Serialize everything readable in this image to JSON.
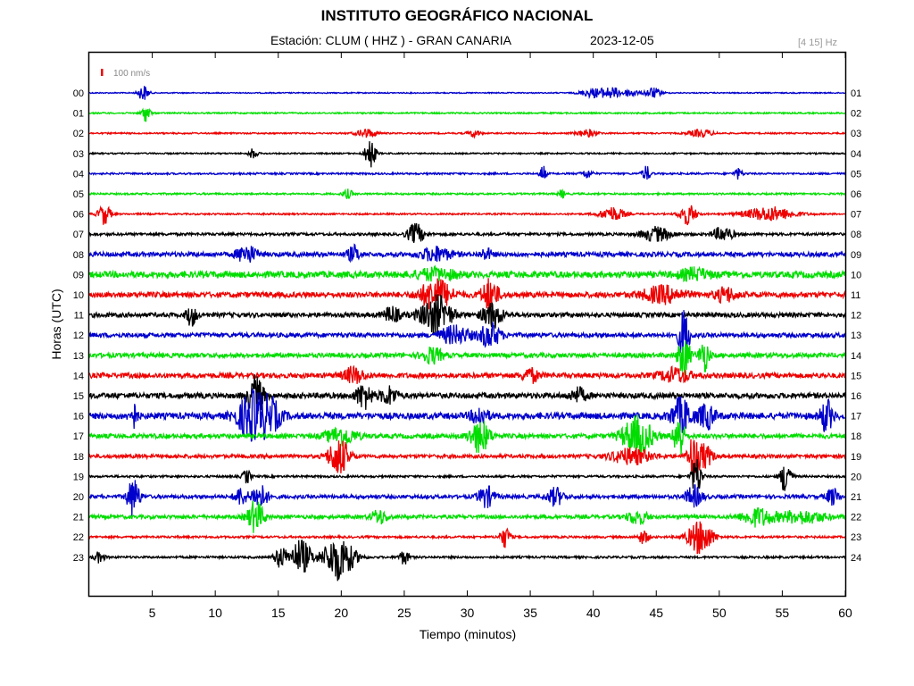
{
  "title": "INSTITUTO GEOGRÁFICO NACIONAL",
  "station_text": "Estación:  CLUM ( HHZ ) - GRAN CANARIA",
  "date": "2023-12-05",
  "filter_band": "[4 15] Hz",
  "chart_data": {
    "type": "line",
    "title": "INSTITUTO GEOGRÁFICO NACIONAL",
    "xlabel": "Tiempo (minutos)",
    "ylabel": "Horas (UTC)",
    "xlim": [
      0,
      60
    ],
    "x_ticks": [
      "5",
      "10",
      "15",
      "20",
      "25",
      "30",
      "35",
      "40",
      "45",
      "50",
      "55",
      "60"
    ],
    "left_hour_labels": [
      "00",
      "01",
      "02",
      "03",
      "04",
      "05",
      "06",
      "07",
      "08",
      "09",
      "10",
      "11",
      "12",
      "13",
      "14",
      "15",
      "16",
      "17",
      "18",
      "19",
      "20",
      "21",
      "22",
      "23"
    ],
    "right_hour_labels": [
      "01",
      "02",
      "03",
      "04",
      "05",
      "06",
      "07",
      "08",
      "09",
      "10",
      "11",
      "12",
      "13",
      "14",
      "15",
      "16",
      "17",
      "18",
      "19",
      "20",
      "21",
      "22",
      "23",
      "24"
    ],
    "scale_label": "100 nm/s",
    "trace_color_cycle": [
      "#0000cc",
      "#00dd00",
      "#ee0000",
      "#000000"
    ],
    "scale_color": "#ee0000",
    "grid": false,
    "series": [
      {
        "hour": "00",
        "color": "#0000cc",
        "noise": 0.6,
        "events": [
          [
            4.3,
            0.5,
            9
          ],
          [
            40.0,
            1.2,
            5
          ],
          [
            41.5,
            1.0,
            6
          ],
          [
            43.0,
            0.6,
            5
          ],
          [
            44.7,
            0.8,
            6
          ]
        ]
      },
      {
        "hour": "01",
        "color": "#00dd00",
        "noise": 0.8,
        "events": [
          [
            4.5,
            0.4,
            10
          ]
        ]
      },
      {
        "hour": "02",
        "color": "#ee0000",
        "noise": 0.8,
        "events": [
          [
            22.0,
            1.0,
            5
          ],
          [
            30.5,
            0.6,
            4
          ],
          [
            39.5,
            1.0,
            4
          ],
          [
            48.5,
            1.2,
            4
          ]
        ]
      },
      {
        "hour": "03",
        "color": "#000000",
        "noise": 0.8,
        "events": [
          [
            13.0,
            0.4,
            6
          ],
          [
            22.3,
            0.5,
            18
          ]
        ]
      },
      {
        "hour": "04",
        "color": "#0000cc",
        "noise": 1.0,
        "events": [
          [
            36.0,
            0.3,
            10
          ],
          [
            39.5,
            0.5,
            5
          ],
          [
            44.2,
            0.4,
            9
          ],
          [
            51.5,
            0.4,
            6
          ]
        ]
      },
      {
        "hour": "05",
        "color": "#00dd00",
        "noise": 1.0,
        "events": [
          [
            20.5,
            0.5,
            5
          ],
          [
            37.5,
            0.3,
            5
          ]
        ]
      },
      {
        "hour": "06",
        "color": "#ee0000",
        "noise": 0.9,
        "events": [
          [
            1.2,
            0.6,
            12
          ],
          [
            41.5,
            1.2,
            8
          ],
          [
            47.5,
            0.8,
            12
          ],
          [
            54.0,
            2.5,
            8
          ]
        ]
      },
      {
        "hour": "07",
        "color": "#000000",
        "noise": 1.5,
        "events": [
          [
            25.9,
            0.8,
            12
          ],
          [
            45.0,
            1.5,
            8
          ],
          [
            50.3,
            1.0,
            8
          ]
        ]
      },
      {
        "hour": "08",
        "color": "#0000cc",
        "noise": 2.5,
        "events": [
          [
            12.5,
            1.0,
            10
          ],
          [
            21.0,
            0.6,
            9
          ],
          [
            27.5,
            1.5,
            8
          ],
          [
            31.5,
            0.6,
            6
          ]
        ]
      },
      {
        "hour": "09",
        "color": "#00dd00",
        "noise": 3.5,
        "events": [
          [
            27.5,
            2.0,
            6
          ],
          [
            48.0,
            1.5,
            6
          ]
        ]
      },
      {
        "hour": "10",
        "color": "#ee0000",
        "noise": 3.0,
        "events": [
          [
            27.5,
            1.5,
            18
          ],
          [
            31.8,
            0.8,
            18
          ],
          [
            45.5,
            2.0,
            9
          ],
          [
            50.5,
            1.0,
            8
          ]
        ]
      },
      {
        "hour": "11",
        "color": "#000000",
        "noise": 2.5,
        "events": [
          [
            8.1,
            0.5,
            12
          ],
          [
            24.0,
            0.8,
            9
          ],
          [
            27.5,
            1.5,
            22
          ],
          [
            32.0,
            1.0,
            14
          ]
        ]
      },
      {
        "hour": "12",
        "color": "#0000cc",
        "noise": 2.5,
        "events": [
          [
            29.0,
            1.5,
            10
          ],
          [
            31.8,
            1.0,
            14
          ],
          [
            47.2,
            0.5,
            30
          ]
        ]
      },
      {
        "hour": "13",
        "color": "#00dd00",
        "noise": 2.5,
        "events": [
          [
            27.2,
            1.0,
            9
          ],
          [
            47.2,
            0.6,
            22
          ],
          [
            48.8,
            0.5,
            18
          ]
        ]
      },
      {
        "hour": "14",
        "color": "#ee0000",
        "noise": 2.8,
        "events": [
          [
            21.0,
            1.0,
            9
          ],
          [
            35.0,
            0.8,
            8
          ],
          [
            46.5,
            1.5,
            8
          ]
        ]
      },
      {
        "hour": "15",
        "color": "#000000",
        "noise": 3.0,
        "events": [
          [
            13.2,
            0.8,
            22
          ],
          [
            21.8,
            0.8,
            14
          ],
          [
            23.8,
            0.8,
            10
          ],
          [
            38.8,
            0.8,
            8
          ]
        ]
      },
      {
        "hour": "16",
        "color": "#0000cc",
        "noise": 3.5,
        "events": [
          [
            3.5,
            0.4,
            14
          ],
          [
            13.0,
            1.5,
            28
          ],
          [
            14.5,
            1.0,
            14
          ],
          [
            31.0,
            0.8,
            10
          ],
          [
            47.0,
            1.0,
            20
          ],
          [
            49.0,
            0.8,
            14
          ],
          [
            58.5,
            0.6,
            18
          ]
        ]
      },
      {
        "hour": "17",
        "color": "#00dd00",
        "noise": 2.5,
        "events": [
          [
            20.0,
            1.5,
            10
          ],
          [
            31.0,
            1.0,
            18
          ],
          [
            43.5,
            1.5,
            22
          ],
          [
            46.8,
            0.5,
            28
          ]
        ]
      },
      {
        "hour": "18",
        "color": "#ee0000",
        "noise": 2.0,
        "events": [
          [
            19.8,
            1.0,
            22
          ],
          [
            43.0,
            2.0,
            9
          ],
          [
            47.9,
            0.5,
            24
          ],
          [
            48.8,
            0.8,
            14
          ]
        ]
      },
      {
        "hour": "19",
        "color": "#000000",
        "noise": 1.2,
        "events": [
          [
            12.5,
            0.4,
            8
          ],
          [
            48.2,
            0.5,
            22
          ],
          [
            55.3,
            0.5,
            22
          ]
        ]
      },
      {
        "hour": "20",
        "color": "#0000cc",
        "noise": 2.0,
        "events": [
          [
            3.5,
            0.6,
            22
          ],
          [
            12.0,
            0.6,
            10
          ],
          [
            13.5,
            0.8,
            14
          ],
          [
            31.5,
            0.8,
            12
          ],
          [
            37.0,
            0.8,
            10
          ],
          [
            48.0,
            0.8,
            12
          ],
          [
            59.0,
            0.6,
            10
          ]
        ]
      },
      {
        "hour": "21",
        "color": "#00dd00",
        "noise": 2.0,
        "events": [
          [
            13.2,
            0.8,
            18
          ],
          [
            23.0,
            0.8,
            8
          ],
          [
            43.5,
            1.0,
            8
          ],
          [
            53.0,
            1.5,
            10
          ],
          [
            56.5,
            2.5,
            7
          ]
        ]
      },
      {
        "hour": "22",
        "color": "#ee0000",
        "noise": 1.2,
        "events": [
          [
            33.0,
            0.5,
            12
          ],
          [
            44.0,
            0.5,
            8
          ],
          [
            48.5,
            1.2,
            20
          ]
        ]
      },
      {
        "hour": "23",
        "color": "#000000",
        "noise": 1.2,
        "events": [
          [
            0.8,
            0.5,
            6
          ],
          [
            15.2,
            0.6,
            12
          ],
          [
            16.8,
            1.0,
            20
          ],
          [
            19.8,
            1.5,
            26
          ],
          [
            25.0,
            0.5,
            8
          ]
        ]
      }
    ]
  }
}
